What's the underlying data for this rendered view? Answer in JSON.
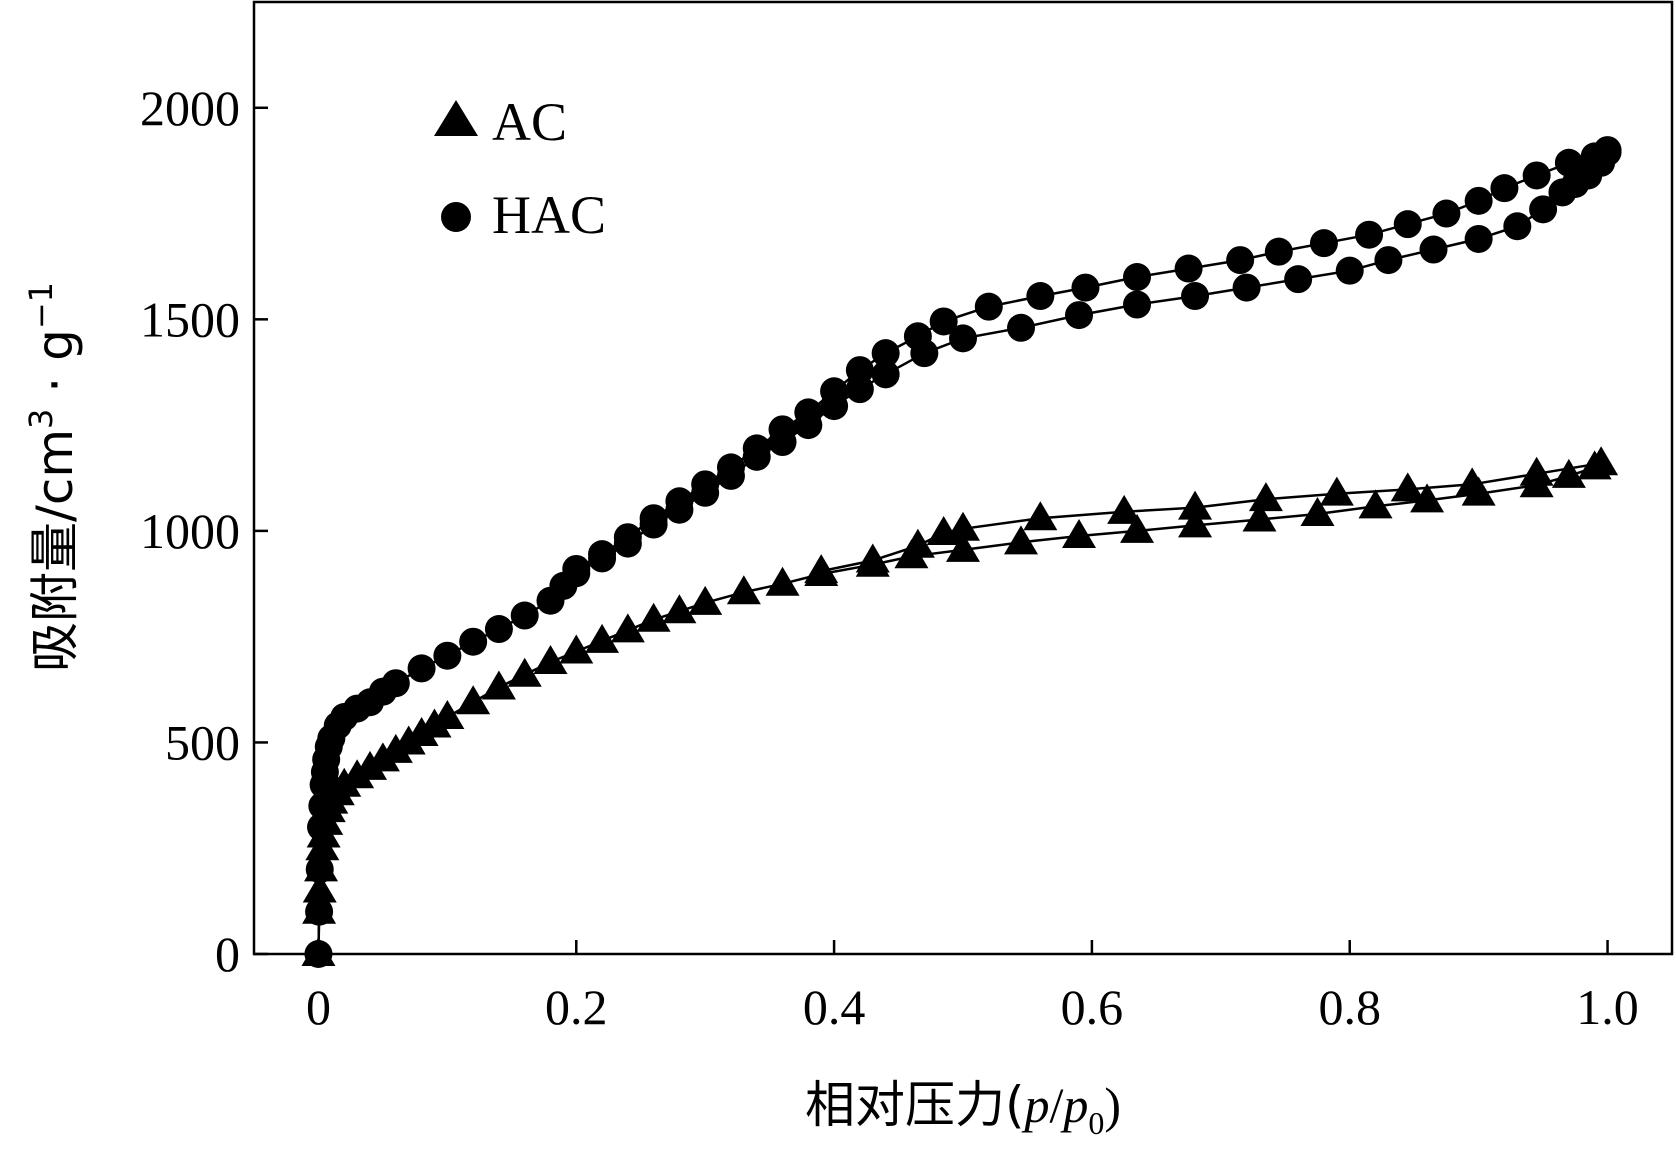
{
  "chart_data": {
    "type": "scatter",
    "title": "",
    "xlabel": "相对压力(p/p0)",
    "xlabel_parts": {
      "prefix": "相对压力(",
      "p": "p",
      "slash": "/",
      "p2": "p",
      "sub": "0",
      "suffix": ")"
    },
    "ylabel": "吸附量/cm3·g−1",
    "ylabel_parts": {
      "main": "吸附量/cm",
      "sup1": "3",
      "dot": " · g",
      "sup2": "−1"
    },
    "xlim": [
      -0.05,
      1.05
    ],
    "ylim": [
      0,
      2250
    ],
    "xticks": [
      0,
      0.2,
      0.4,
      0.6,
      0.8,
      1.0
    ],
    "xtick_labels": [
      "0",
      "0.2",
      "0.4",
      "0.6",
      "0.8",
      "1.0"
    ],
    "yticks": [
      0,
      500,
      1000,
      1500,
      2000
    ],
    "ytick_labels": [
      "0",
      "500",
      "1000",
      "1500",
      "2000"
    ],
    "grid": false,
    "legend_position": "top-left",
    "series": [
      {
        "name": "AC",
        "marker": "triangle",
        "color": "#000000",
        "adsorption": [
          [
            0,
            0
          ],
          [
            0.0005,
            100
          ],
          [
            0.001,
            150
          ],
          [
            0.002,
            200
          ],
          [
            0.003,
            250
          ],
          [
            0.004,
            280
          ],
          [
            0.006,
            310
          ],
          [
            0.008,
            340
          ],
          [
            0.01,
            360
          ],
          [
            0.015,
            380
          ],
          [
            0.02,
            400
          ],
          [
            0.03,
            420
          ],
          [
            0.04,
            440
          ],
          [
            0.05,
            460
          ],
          [
            0.06,
            480
          ],
          [
            0.07,
            500
          ],
          [
            0.08,
            520
          ],
          [
            0.09,
            540
          ],
          [
            0.1,
            560
          ],
          [
            0.12,
            595
          ],
          [
            0.14,
            630
          ],
          [
            0.16,
            660
          ],
          [
            0.18,
            690
          ],
          [
            0.2,
            715
          ],
          [
            0.22,
            740
          ],
          [
            0.24,
            765
          ],
          [
            0.26,
            790
          ],
          [
            0.28,
            810
          ],
          [
            0.3,
            830
          ],
          [
            0.33,
            855
          ],
          [
            0.36,
            875
          ],
          [
            0.39,
            898
          ],
          [
            0.43,
            920
          ],
          [
            0.46,
            940
          ],
          [
            0.5,
            955
          ],
          [
            0.545,
            973
          ],
          [
            0.59,
            988
          ],
          [
            0.635,
            1000
          ],
          [
            0.68,
            1013
          ],
          [
            0.73,
            1027
          ],
          [
            0.775,
            1040
          ],
          [
            0.82,
            1058
          ],
          [
            0.86,
            1072
          ],
          [
            0.9,
            1088
          ],
          [
            0.945,
            1108
          ],
          [
            0.97,
            1130
          ],
          [
            0.99,
            1150
          ]
        ],
        "desorption": [
          [
            0.995,
            1160
          ],
          [
            0.945,
            1135
          ],
          [
            0.895,
            1110
          ],
          [
            0.845,
            1098
          ],
          [
            0.79,
            1088
          ],
          [
            0.735,
            1075
          ],
          [
            0.68,
            1055
          ],
          [
            0.625,
            1045
          ],
          [
            0.56,
            1030
          ],
          [
            0.5,
            1005
          ],
          [
            0.485,
            995
          ],
          [
            0.465,
            965
          ],
          [
            0.43,
            930
          ],
          [
            0.39,
            905
          ]
        ]
      },
      {
        "name": "HAC",
        "marker": "circle",
        "color": "#000000",
        "adsorption": [
          [
            0,
            0
          ],
          [
            0.0005,
            100
          ],
          [
            0.001,
            200
          ],
          [
            0.002,
            300
          ],
          [
            0.003,
            350
          ],
          [
            0.004,
            400
          ],
          [
            0.005,
            430
          ],
          [
            0.006,
            460
          ],
          [
            0.008,
            490
          ],
          [
            0.01,
            510
          ],
          [
            0.015,
            540
          ],
          [
            0.02,
            560
          ],
          [
            0.03,
            580
          ],
          [
            0.04,
            595
          ],
          [
            0.05,
            620
          ],
          [
            0.06,
            640
          ],
          [
            0.08,
            675
          ],
          [
            0.1,
            705
          ],
          [
            0.12,
            738
          ],
          [
            0.14,
            768
          ],
          [
            0.16,
            800
          ],
          [
            0.18,
            835
          ],
          [
            0.19,
            870
          ],
          [
            0.2,
            900
          ],
          [
            0.22,
            935
          ],
          [
            0.24,
            970
          ],
          [
            0.26,
            1015
          ],
          [
            0.28,
            1050
          ],
          [
            0.3,
            1090
          ],
          [
            0.32,
            1130
          ],
          [
            0.34,
            1175
          ],
          [
            0.36,
            1210
          ],
          [
            0.38,
            1250
          ],
          [
            0.4,
            1295
          ],
          [
            0.42,
            1335
          ],
          [
            0.44,
            1370
          ],
          [
            0.47,
            1420
          ],
          [
            0.5,
            1455
          ],
          [
            0.545,
            1480
          ],
          [
            0.59,
            1510
          ],
          [
            0.635,
            1535
          ],
          [
            0.68,
            1555
          ],
          [
            0.72,
            1575
          ],
          [
            0.76,
            1595
          ],
          [
            0.8,
            1615
          ],
          [
            0.83,
            1640
          ],
          [
            0.865,
            1665
          ],
          [
            0.9,
            1690
          ],
          [
            0.93,
            1720
          ],
          [
            0.95,
            1760
          ],
          [
            0.965,
            1800
          ],
          [
            0.975,
            1820
          ],
          [
            0.985,
            1840
          ],
          [
            0.995,
            1870
          ],
          [
            1.0,
            1895
          ]
        ],
        "desorption": [
          [
            1.0,
            1900
          ],
          [
            0.99,
            1885
          ],
          [
            0.97,
            1870
          ],
          [
            0.945,
            1840
          ],
          [
            0.92,
            1810
          ],
          [
            0.9,
            1780
          ],
          [
            0.875,
            1750
          ],
          [
            0.845,
            1725
          ],
          [
            0.815,
            1700
          ],
          [
            0.78,
            1680
          ],
          [
            0.745,
            1660
          ],
          [
            0.715,
            1640
          ],
          [
            0.675,
            1620
          ],
          [
            0.635,
            1600
          ],
          [
            0.595,
            1575
          ],
          [
            0.56,
            1555
          ],
          [
            0.52,
            1530
          ],
          [
            0.485,
            1495
          ],
          [
            0.465,
            1460
          ],
          [
            0.44,
            1420
          ],
          [
            0.42,
            1380
          ],
          [
            0.4,
            1330
          ],
          [
            0.38,
            1280
          ],
          [
            0.36,
            1240
          ],
          [
            0.34,
            1195
          ],
          [
            0.32,
            1150
          ],
          [
            0.3,
            1110
          ],
          [
            0.28,
            1070
          ],
          [
            0.26,
            1030
          ],
          [
            0.24,
            985
          ],
          [
            0.22,
            945
          ],
          [
            0.2,
            910
          ]
        ]
      }
    ]
  }
}
